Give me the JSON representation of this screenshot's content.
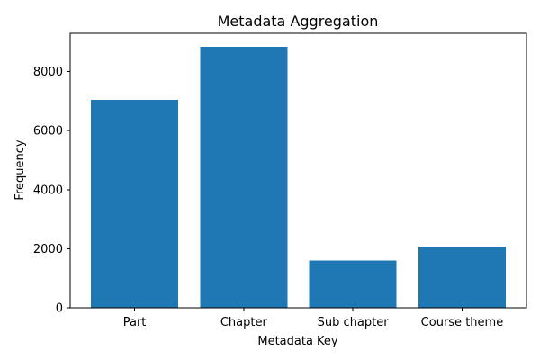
{
  "chart_data": {
    "type": "bar",
    "title": "Metadata Aggregation",
    "xlabel": "Metadata Key",
    "ylabel": "Frequency",
    "categories": [
      "Part",
      "Chapter",
      "Sub chapter",
      "Course theme"
    ],
    "values": [
      7050,
      8850,
      1600,
      2080
    ],
    "ylim": [
      0,
      9300
    ],
    "yticks": [
      0,
      2000,
      4000,
      6000,
      8000
    ],
    "grid": false,
    "bar_color": "#1f77b4"
  }
}
